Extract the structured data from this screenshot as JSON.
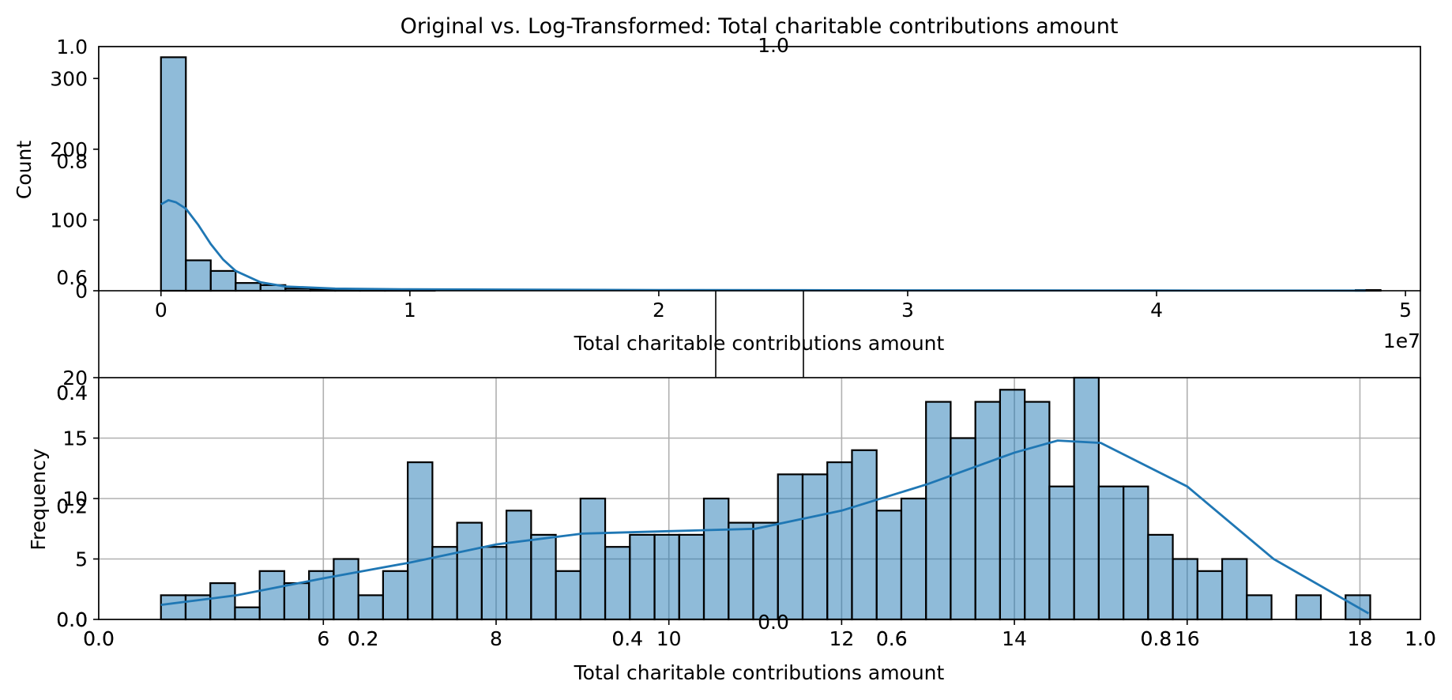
{
  "figure": {
    "title": "Original vs. Log-Transformed: Total charitable contributions amount"
  },
  "chart_data": [
    {
      "type": "bar",
      "subtype": "histogram_with_kde",
      "xlabel": "Total charitable contributions amount",
      "ylabel": "Count",
      "x_offset_label": "1e7",
      "xlim": [
        -0.25,
        5.06
      ],
      "ylim": [
        0,
        345
      ],
      "xticks": [
        "0",
        "1",
        "2",
        "3",
        "4",
        "5"
      ],
      "yticks": [
        "0",
        "100",
        "200",
        "300"
      ],
      "grid": false,
      "bin_start": 0,
      "bin_width": 0.1,
      "bin_counts": [
        330,
        43,
        28,
        11,
        8,
        3,
        2,
        1,
        1,
        1,
        1,
        0,
        0,
        0,
        0,
        0,
        0,
        0,
        0,
        0,
        0,
        0,
        0,
        0,
        0,
        0,
        0,
        0,
        0,
        0,
        0,
        0,
        0,
        0,
        0,
        0,
        0,
        0,
        0,
        0,
        0,
        0,
        0,
        0,
        0,
        0,
        0,
        0,
        1
      ],
      "kde": {
        "x": [
          0,
          0.03,
          0.06,
          0.1,
          0.15,
          0.2,
          0.25,
          0.3,
          0.4,
          0.5,
          0.7,
          1.0,
          2.0,
          3.0,
          4.0,
          4.84
        ],
        "y": [
          122,
          128,
          125,
          116,
          93,
          66,
          44,
          28,
          12,
          6,
          3,
          2,
          1,
          0.6,
          0.3,
          0.2
        ]
      },
      "color": "#1f77b4"
    },
    {
      "type": "bar",
      "subtype": "histogram_with_kde",
      "xlabel": "Total charitable contributions amount",
      "ylabel": "Frequency",
      "xlim": [
        3.4,
        18.7
      ],
      "ylim": [
        0,
        20
      ],
      "xticks": [
        "6",
        "8",
        "10",
        "12",
        "14",
        "16",
        "18"
      ],
      "yticks": [
        "0",
        "5",
        "10",
        "15",
        "20"
      ],
      "grid": true,
      "bin_start": 4.12,
      "bin_width": 0.2857,
      "bin_counts": [
        2,
        2,
        3,
        1,
        4,
        3,
        4,
        5,
        2,
        4,
        13,
        6,
        8,
        6,
        9,
        7,
        4,
        10,
        6,
        7,
        7,
        7,
        10,
        8,
        8,
        12,
        12,
        13,
        14,
        9,
        10,
        18,
        15,
        18,
        19,
        18,
        11,
        20,
        11,
        11,
        7,
        5,
        4,
        5,
        2,
        0,
        2,
        0,
        2
      ],
      "kde": {
        "x": [
          4.12,
          5,
          6,
          7,
          8,
          9,
          10,
          11,
          12,
          13,
          14,
          14.5,
          15,
          16,
          17,
          18.1
        ],
        "y": [
          1.2,
          2.0,
          3.4,
          4.7,
          6.2,
          7.1,
          7.3,
          7.5,
          9.0,
          11.2,
          13.8,
          14.8,
          14.6,
          11.0,
          5.0,
          0.5
        ]
      },
      "color": "#1f77b4"
    }
  ],
  "overlay_axes": [
    {
      "yticks": [
        "0.6",
        "0.8",
        "1.0"
      ],
      "top_label": "1.0"
    },
    {
      "xticks": [
        "0.0",
        "0.2",
        "0.4",
        "0.6",
        "0.8",
        "1.0"
      ],
      "yticks": [
        "0.0",
        "0.2",
        "0.4"
      ]
    },
    {
      "xticks": [
        "0.0",
        "0.2",
        "0.4",
        "0.6",
        "0.8",
        "1.0"
      ],
      "yticks": [
        "0.0",
        "0.2",
        "0.4"
      ],
      "bottom_label": "0.0"
    }
  ]
}
